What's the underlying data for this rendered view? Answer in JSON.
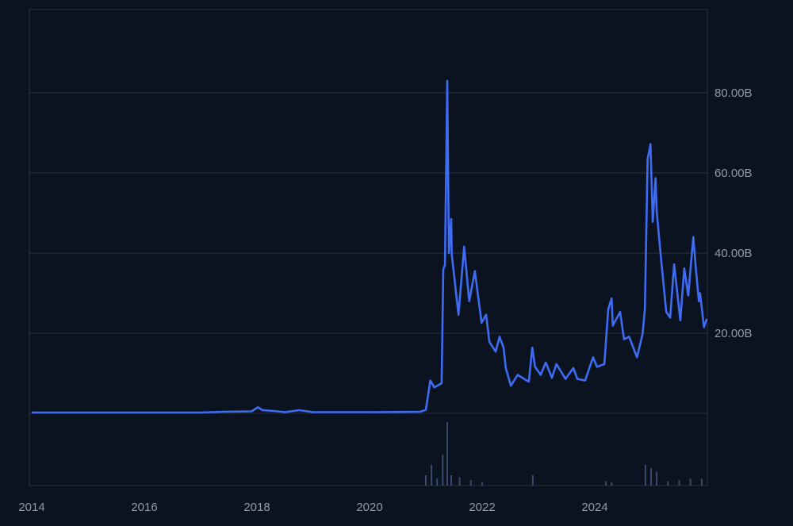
{
  "chart_data": {
    "type": "line",
    "title": "",
    "xlabel": "",
    "ylabel": "",
    "xlim": [
      2014,
      2026
    ],
    "ylim": [
      0,
      100
    ],
    "grid": true,
    "y_ticks": [
      20,
      40,
      60,
      80
    ],
    "y_tick_labels": [
      "20.00B",
      "40.00B",
      "60.00B",
      "80.00B"
    ],
    "x_ticks": [
      2014,
      2016,
      2018,
      2020,
      2022,
      2024
    ],
    "x_tick_labels": [
      "2014",
      "2016",
      "2018",
      "2020",
      "2022",
      "2024"
    ],
    "colors": {
      "background": "#0c1320",
      "line": "#3d6cf2",
      "grid": "#283040",
      "volume": "#3a4a6e",
      "text": "#8f98a8"
    },
    "series": [
      {
        "x": [
          2014.0,
          2015.0,
          2016.0,
          2017.0,
          2017.4,
          2017.9,
          2018.02,
          2018.1,
          2018.3,
          2018.5,
          2018.75,
          2019.0,
          2020.0,
          2020.9,
          2021.0,
          2021.08,
          2021.15,
          2021.28,
          2021.31,
          2021.34,
          2021.38,
          2021.41,
          2021.45,
          2021.46,
          2021.58,
          2021.68,
          2021.77,
          2021.87,
          2021.99,
          2022.07,
          2022.13,
          2022.24,
          2022.31,
          2022.38,
          2022.42,
          2022.51,
          2022.63,
          2022.83,
          2022.89,
          2022.94,
          2023.04,
          2023.13,
          2023.24,
          2023.32,
          2023.48,
          2023.62,
          2023.69,
          2023.83,
          2023.97,
          2024.04,
          2024.17,
          2024.24,
          2024.3,
          2024.32,
          2024.45,
          2024.52,
          2024.61,
          2024.75,
          2024.85,
          2024.89,
          2024.94,
          2024.99,
          2025.03,
          2025.08,
          2025.1,
          2025.17,
          2025.27,
          2025.34,
          2025.41,
          2025.52,
          2025.59,
          2025.66,
          2025.75,
          2025.8,
          2025.85,
          2025.87,
          2025.94,
          2025.99
        ],
        "values": [
          0.2,
          0.2,
          0.2,
          0.2,
          0.4,
          0.5,
          1.5,
          0.8,
          0.6,
          0.3,
          0.8,
          0.3,
          0.3,
          0.4,
          0.9,
          8.2,
          6.5,
          7.5,
          36,
          37,
          83,
          40,
          48.5,
          39.6,
          24.6,
          41.6,
          28,
          35.5,
          22.6,
          24.6,
          17.8,
          15.4,
          19.1,
          16.4,
          11.3,
          6.9,
          9.6,
          7.9,
          16.4,
          11.6,
          9.6,
          12.7,
          8.9,
          12.3,
          8.6,
          11.3,
          8.6,
          8.2,
          14,
          11.6,
          12.3,
          26,
          28.7,
          21.9,
          25.3,
          18.5,
          19.1,
          14,
          19.8,
          26,
          63.5,
          67.2,
          47.8,
          58.7,
          50.5,
          39.6,
          25.3,
          23.9,
          37.2,
          23.2,
          36.2,
          29.4,
          44,
          35.5,
          28,
          30,
          21.5,
          23.6
        ]
      }
    ],
    "volume": {
      "scale": "relative (0-1, unlabeled)",
      "x": [
        2021.0,
        2021.1,
        2021.2,
        2021.3,
        2021.38,
        2021.45,
        2021.6,
        2021.8,
        2022.0,
        2022.9,
        2024.2,
        2024.3,
        2024.9,
        2025.0,
        2025.1,
        2025.3,
        2025.5,
        2025.7,
        2025.9
      ],
      "values": [
        0.15,
        0.3,
        0.1,
        0.45,
        0.92,
        0.15,
        0.12,
        0.08,
        0.05,
        0.15,
        0.06,
        0.05,
        0.3,
        0.25,
        0.2,
        0.06,
        0.08,
        0.1,
        0.1
      ]
    }
  }
}
